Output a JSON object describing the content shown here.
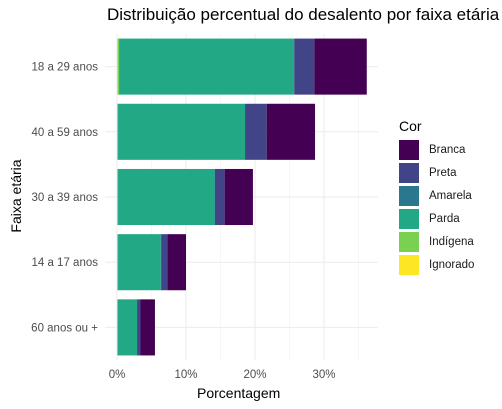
{
  "chart_data": {
    "type": "bar",
    "orientation": "horizontal",
    "stacked": true,
    "title": "Distribuição percentual do desalento por faixa etária",
    "xlabel": "Porcentagem",
    "ylabel": "Faixa etária",
    "xlim": [
      0,
      37
    ],
    "xticks": [
      "0%",
      "10%",
      "20%",
      "30%"
    ],
    "xtick_values": [
      0,
      10,
      20,
      30
    ],
    "grid": true,
    "legend_title": "Cor",
    "legend_position": "right",
    "categories": [
      "18 a 29 anos",
      "40 a 59 anos",
      "30 a 39 anos",
      "14 a 17 anos",
      "60 anos ou +"
    ],
    "series": [
      {
        "name": "Ignorado",
        "color": "#FDE725",
        "values": [
          0.1,
          0.05,
          0.05,
          0.05,
          0.05
        ]
      },
      {
        "name": "Indígena",
        "color": "#7AD151",
        "values": [
          0.2,
          0.1,
          0.1,
          0.1,
          0.05
        ]
      },
      {
        "name": "Parda",
        "color": "#22A884",
        "values": [
          25.3,
          18.4,
          14.0,
          6.2,
          2.8
        ]
      },
      {
        "name": "Amarela",
        "color": "#2A788E",
        "values": [
          0.1,
          0.05,
          0.05,
          0.05,
          0.05
        ]
      },
      {
        "name": "Preta",
        "color": "#414487",
        "values": [
          2.9,
          3.1,
          1.4,
          0.9,
          0.45
        ]
      },
      {
        "name": "Branca",
        "color": "#440154",
        "values": [
          7.6,
          7.0,
          4.1,
          2.7,
          2.1
        ]
      }
    ],
    "legend_order": [
      "Branca",
      "Preta",
      "Amarela",
      "Parda",
      "Indígena",
      "Ignorado"
    ]
  }
}
